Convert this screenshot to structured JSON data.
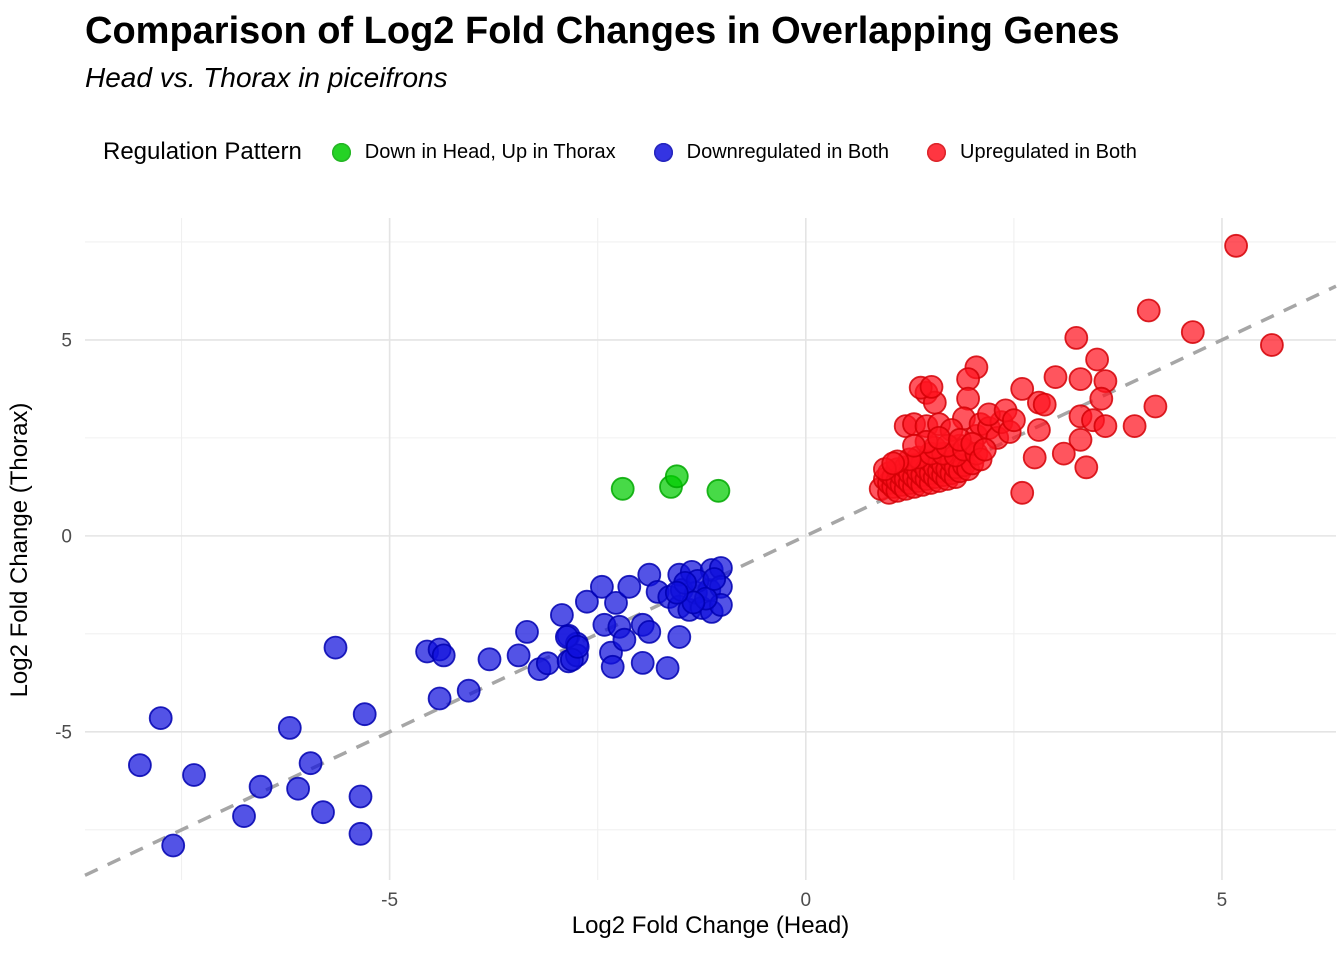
{
  "title": "Comparison of Log2 Fold Changes in Overlapping Genes",
  "subtitle": "Head vs. Thorax in piceifrons",
  "legend": {
    "title": "Regulation Pattern",
    "items": [
      {
        "label": "Down in Head, Up in Thorax",
        "color": "#00cc00",
        "stroke": "#00a800",
        "icon": "green-dot-icon"
      },
      {
        "label": "Downregulated in Both",
        "color": "#1111dd",
        "stroke": "#0000b0",
        "icon": "blue-dot-icon"
      },
      {
        "label": "Upregulated in Both",
        "color": "#ff1420",
        "stroke": "#d40006",
        "icon": "red-dot-icon"
      }
    ]
  },
  "chart_data": {
    "type": "scatter",
    "title": "Comparison of Log2 Fold Changes in Overlapping Genes",
    "subtitle": "Head vs. Thorax in piceifrons",
    "xlabel": "Log2 Fold Change (Head)",
    "ylabel": "Log2 Fold Change (Thorax)",
    "xlim": [
      -8.66,
      6.37
    ],
    "ylim": [
      -8.78,
      8.11
    ],
    "x_ticks": [
      -5,
      0,
      5
    ],
    "y_ticks": [
      -5,
      0,
      5
    ],
    "x_tick_labels": [
      "-5",
      "0",
      "5"
    ],
    "y_tick_labels": [
      "-5",
      "0",
      "5"
    ],
    "x_minor_ticks": [
      -7.5,
      -2.5,
      2.5,
      7.5
    ],
    "y_minor_ticks": [
      -7.5,
      -2.5,
      2.5,
      7.5
    ],
    "grid": true,
    "legend_position": "top",
    "legend_title": "Regulation Pattern",
    "reference_line": {
      "type": "identity y=x",
      "style": "dashed",
      "color": "#a6a6a6"
    },
    "colors": {
      "major_grid": "#e4e4e4",
      "minor_grid": "#f0f0f0",
      "tick_text": "#4d4d4d",
      "background": "#ffffff"
    },
    "series": [
      {
        "name": "Down in Head, Up in Thorax",
        "color": "#00cc00",
        "stroke": "#00a800",
        "points": [
          [
            -2.2,
            1.2
          ],
          [
            -1.62,
            1.25
          ],
          [
            -1.55,
            1.52
          ],
          [
            -1.05,
            1.15
          ]
        ]
      },
      {
        "name": "Downregulated in Both",
        "color": "#1111dd",
        "stroke": "#0000b0",
        "points": [
          [
            -8.0,
            -5.85
          ],
          [
            -7.75,
            -4.65
          ],
          [
            -7.6,
            -7.9
          ],
          [
            -7.35,
            -6.1
          ],
          [
            -6.75,
            -7.15
          ],
          [
            -6.55,
            -6.4
          ],
          [
            -6.2,
            -4.9
          ],
          [
            -6.1,
            -6.45
          ],
          [
            -5.95,
            -5.8
          ],
          [
            -5.8,
            -7.05
          ],
          [
            -5.35,
            -6.65
          ],
          [
            -5.35,
            -7.6
          ],
          [
            -5.3,
            -4.55
          ],
          [
            -5.65,
            -2.85
          ],
          [
            -4.55,
            -2.95
          ],
          [
            -4.4,
            -2.9
          ],
          [
            -4.35,
            -3.05
          ],
          [
            -4.4,
            -4.15
          ],
          [
            -4.05,
            -3.95
          ],
          [
            -3.8,
            -3.15
          ],
          [
            -3.45,
            -3.05
          ],
          [
            -3.35,
            -2.45
          ],
          [
            -3.2,
            -3.4
          ],
          [
            -3.1,
            -3.25
          ],
          [
            -2.85,
            -3.2
          ],
          [
            -2.85,
            -2.55
          ],
          [
            -2.75,
            -2.75
          ],
          [
            -2.75,
            -3.05
          ],
          [
            -2.93,
            -2.02
          ],
          [
            -2.87,
            -2.58
          ],
          [
            -2.81,
            -3.16
          ],
          [
            -2.74,
            -2.83
          ],
          [
            -2.63,
            -1.68
          ],
          [
            -2.45,
            -1.3
          ],
          [
            -2.42,
            -2.27
          ],
          [
            -2.34,
            -2.98
          ],
          [
            -2.32,
            -3.34
          ],
          [
            -2.28,
            -1.71
          ],
          [
            -2.24,
            -2.32
          ],
          [
            -2.18,
            -2.65
          ],
          [
            -2.12,
            -1.3
          ],
          [
            -1.96,
            -2.27
          ],
          [
            -1.96,
            -3.24
          ],
          [
            -1.88,
            -0.99
          ],
          [
            -1.88,
            -2.45
          ],
          [
            -1.78,
            -1.43
          ],
          [
            -1.66,
            -3.37
          ],
          [
            -1.64,
            -1.56
          ],
          [
            -1.52,
            -0.99
          ],
          [
            -1.52,
            -1.81
          ],
          [
            -1.52,
            -2.58
          ],
          [
            -1.49,
            -1.38
          ],
          [
            -1.4,
            -1.89
          ],
          [
            -1.37,
            -0.92
          ],
          [
            -1.32,
            -1.45
          ],
          [
            -1.25,
            -1.84
          ],
          [
            -1.16,
            -1.38
          ],
          [
            -1.13,
            -0.87
          ],
          [
            -1.13,
            -1.94
          ],
          [
            -1.02,
            -0.82
          ],
          [
            -1.02,
            -1.3
          ],
          [
            -1.02,
            -1.76
          ],
          [
            -1.3,
            -1.15
          ],
          [
            -1.45,
            -1.2
          ],
          [
            -1.2,
            -1.6
          ],
          [
            -1.35,
            -1.7
          ],
          [
            -1.55,
            -1.45
          ],
          [
            -1.1,
            -1.1
          ]
        ]
      },
      {
        "name": "Upregulated in Both",
        "color": "#ff1420",
        "stroke": "#d40006",
        "points": [
          [
            5.17,
            7.4
          ],
          [
            4.12,
            5.75
          ],
          [
            4.65,
            5.2
          ],
          [
            5.6,
            4.87
          ],
          [
            3.25,
            5.05
          ],
          [
            3.5,
            4.5
          ],
          [
            2.05,
            4.3
          ],
          [
            1.95,
            4.0
          ],
          [
            1.45,
            3.65
          ],
          [
            1.55,
            3.4
          ],
          [
            3.3,
            4.0
          ],
          [
            3.6,
            3.95
          ],
          [
            3.0,
            4.05
          ],
          [
            2.6,
            3.75
          ],
          [
            2.8,
            3.4
          ],
          [
            3.55,
            3.5
          ],
          [
            4.2,
            3.3
          ],
          [
            2.87,
            3.35
          ],
          [
            3.3,
            3.05
          ],
          [
            3.45,
            2.95
          ],
          [
            3.95,
            2.8
          ],
          [
            3.3,
            2.45
          ],
          [
            3.1,
            2.1
          ],
          [
            3.37,
            1.75
          ],
          [
            2.6,
            1.1
          ],
          [
            2.75,
            2.0
          ],
          [
            3.6,
            2.8
          ],
          [
            2.8,
            2.7
          ],
          [
            1.2,
            2.8
          ],
          [
            1.3,
            2.85
          ],
          [
            1.45,
            2.8
          ],
          [
            1.6,
            2.85
          ],
          [
            1.38,
            3.78
          ],
          [
            1.51,
            3.8
          ],
          [
            1.95,
            3.5
          ],
          [
            1.85,
            2.3
          ],
          [
            2.05,
            2.55
          ],
          [
            1.9,
            3.0
          ],
          [
            2.1,
            2.85
          ],
          [
            1.75,
            2.7
          ],
          [
            2.2,
            2.75
          ],
          [
            2.3,
            2.5
          ],
          [
            2.35,
            2.9
          ],
          [
            2.45,
            2.65
          ],
          [
            2.2,
            3.1
          ],
          [
            2.4,
            3.2
          ],
          [
            2.5,
            2.95
          ],
          [
            0.9,
            1.2
          ],
          [
            0.95,
            1.45
          ],
          [
            1.0,
            1.1
          ],
          [
            1.0,
            1.35
          ],
          [
            1.0,
            1.6
          ],
          [
            1.05,
            1.25
          ],
          [
            1.05,
            1.5
          ],
          [
            1.1,
            1.15
          ],
          [
            1.1,
            1.4
          ],
          [
            1.1,
            1.7
          ],
          [
            1.15,
            1.3
          ],
          [
            1.15,
            1.55
          ],
          [
            1.2,
            1.2
          ],
          [
            1.2,
            1.45
          ],
          [
            1.2,
            1.75
          ],
          [
            1.25,
            1.35
          ],
          [
            1.25,
            1.6
          ],
          [
            1.3,
            1.25
          ],
          [
            1.3,
            1.5
          ],
          [
            1.3,
            1.8
          ],
          [
            1.35,
            1.4
          ],
          [
            1.35,
            1.65
          ],
          [
            1.4,
            1.3
          ],
          [
            1.4,
            1.55
          ],
          [
            1.4,
            1.85
          ],
          [
            1.45,
            1.45
          ],
          [
            1.45,
            1.7
          ],
          [
            1.5,
            1.35
          ],
          [
            1.5,
            1.6
          ],
          [
            1.5,
            1.9
          ],
          [
            1.55,
            1.5
          ],
          [
            1.55,
            1.75
          ],
          [
            1.6,
            1.4
          ],
          [
            1.6,
            1.65
          ],
          [
            1.6,
            1.95
          ],
          [
            1.65,
            1.55
          ],
          [
            1.65,
            1.8
          ],
          [
            1.7,
            1.45
          ],
          [
            1.7,
            1.7
          ],
          [
            1.75,
            1.6
          ],
          [
            1.75,
            1.9
          ],
          [
            1.8,
            1.5
          ],
          [
            1.8,
            1.75
          ],
          [
            1.85,
            1.65
          ],
          [
            1.9,
            1.8
          ],
          [
            1.95,
            1.7
          ],
          [
            2.0,
            1.85
          ],
          [
            1.35,
            2.0
          ],
          [
            1.5,
            2.1
          ],
          [
            1.65,
            2.1
          ],
          [
            1.8,
            2.05
          ],
          [
            1.25,
            1.95
          ],
          [
            1.1,
            1.9
          ],
          [
            1.55,
            2.25
          ],
          [
            1.7,
            2.3
          ],
          [
            1.9,
            2.2
          ],
          [
            2.05,
            2.1
          ],
          [
            1.45,
            2.4
          ],
          [
            1.3,
            2.3
          ],
          [
            1.6,
            2.5
          ],
          [
            1.85,
            2.45
          ],
          [
            2.0,
            2.35
          ],
          [
            2.1,
            1.95
          ],
          [
            2.15,
            2.2
          ],
          [
            0.95,
            1.7
          ],
          [
            1.05,
            1.85
          ]
        ]
      }
    ]
  }
}
